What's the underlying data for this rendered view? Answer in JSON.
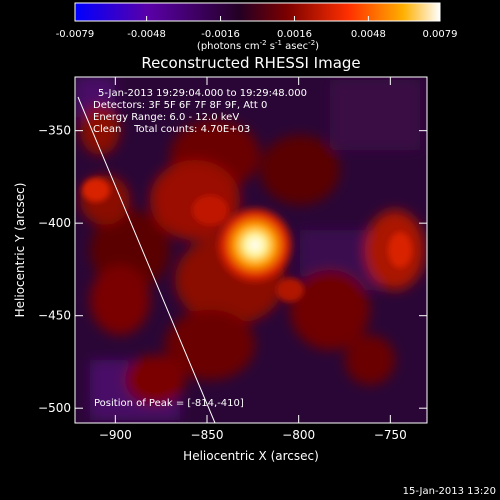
{
  "colorbar": {
    "tick_labels": [
      "-0.0079",
      "-0.0048",
      "-0.0016",
      "0.0016",
      "0.0048",
      "0.0079"
    ],
    "tick_values": [
      -0.0079,
      -0.0048,
      -0.0016,
      0.0016,
      0.0048,
      0.0079
    ],
    "range": [
      -0.0079,
      0.0079
    ],
    "colors": [
      "#0000ff",
      "#5a00a8",
      "#240024",
      "#7a0000",
      "#ff3000",
      "#ffb000",
      "#ffffff"
    ],
    "units_prefix": "(photons cm",
    "units_exp1": "-2",
    "units_mid": " s",
    "units_exp2": "-1",
    "units_mid2": " asec",
    "units_exp3": "-2",
    "units_suffix": ")"
  },
  "plot": {
    "title": "Reconstructed RHESSI Image",
    "annotation_lines": [
      "5-Jan-2013 19:29:04.000 to 19:29:48.000",
      "Detectors: 3F 5F 6F 7F 8F 9F, Att 0",
      "Energy Range: 6.0 - 12.0 keV",
      "Clean    Total counts: 4.70E+03"
    ],
    "peak_text": "Position of Peak = [-814,-410]",
    "xlabel": "Heliocentric X (arcsec)",
    "ylabel": "Heliocentric Y (arcsec)",
    "x_ticks": [
      -900,
      -850,
      -800,
      -750
    ],
    "y_ticks": [
      -350,
      -400,
      -450,
      -500
    ],
    "x_tick_labels": [
      "−900",
      "−850",
      "−800",
      "−750"
    ],
    "y_tick_labels": [
      "−350",
      "−400",
      "−450",
      "−500"
    ],
    "xlim": [
      -922,
      -730
    ],
    "ylim": [
      -508,
      -321
    ],
    "peak": [
      -814,
      -410
    ]
  },
  "footer": {
    "timestamp": "15-Jan-2013 13:20"
  }
}
